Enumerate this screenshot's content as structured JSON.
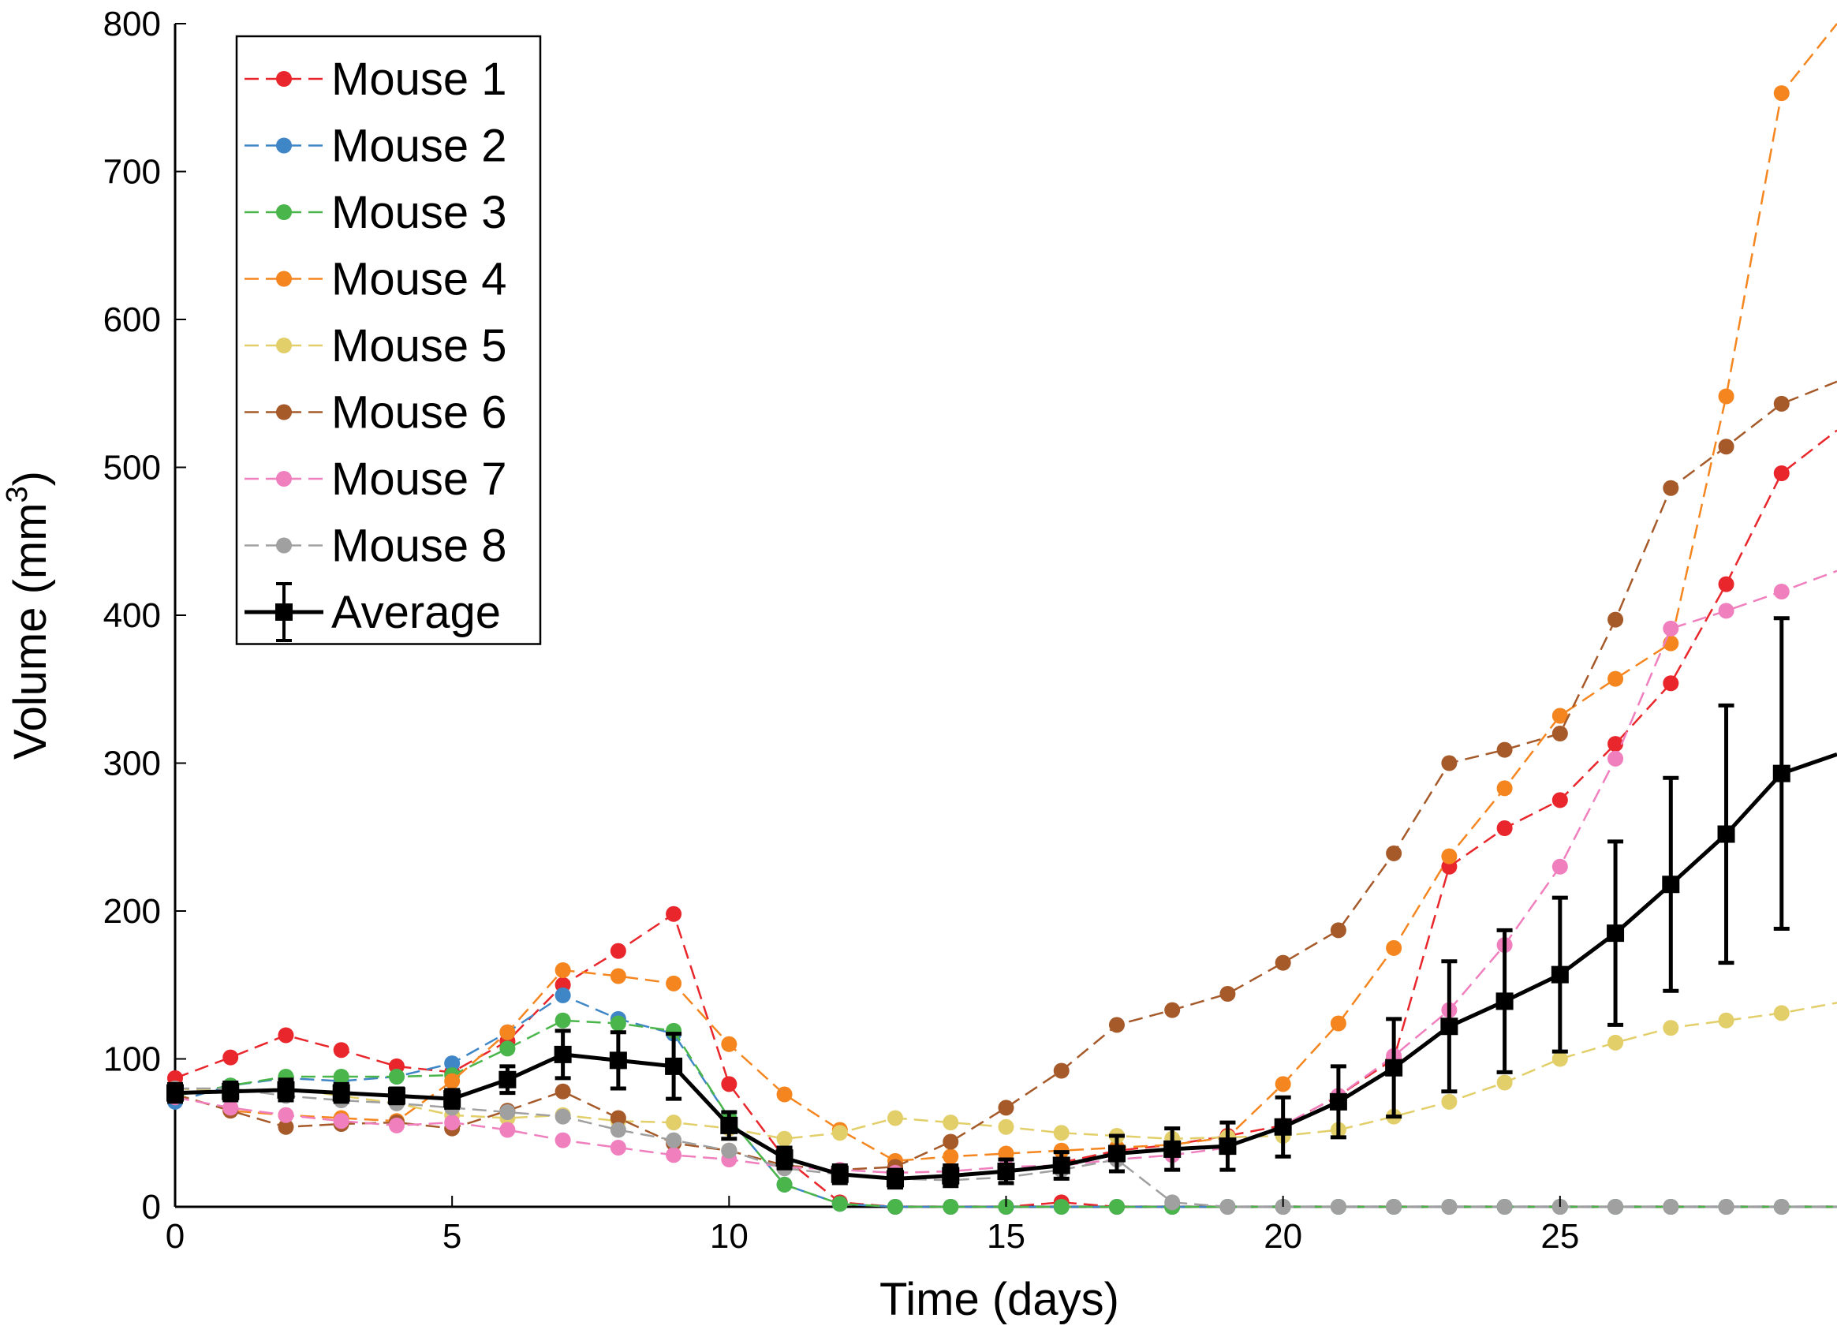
{
  "chart_data": {
    "type": "line",
    "title": "",
    "xlabel": "Time (days)",
    "ylabel": "Volume (mm",
    "ylabel_superscript": "3",
    "ylabel_suffix": ")",
    "xlim": [
      0,
      30
    ],
    "ylim": [
      0,
      800
    ],
    "xticks": [
      0,
      5,
      10,
      15,
      20,
      25
    ],
    "yticks": [
      0,
      100,
      200,
      300,
      400,
      500,
      600,
      700,
      800
    ],
    "legend_position": "top-left",
    "series": [
      {
        "name": "Mouse 1",
        "color": "#e8262b",
        "style": "dashed-marker",
        "x": [
          0,
          1,
          2,
          3,
          4,
          5,
          6,
          7,
          8,
          9,
          10,
          11,
          12,
          13,
          14,
          15,
          16,
          17,
          18,
          19,
          20,
          21,
          22,
          23,
          24,
          25,
          26,
          27,
          28,
          29,
          30
        ],
        "values": [
          87,
          101,
          116,
          106,
          95,
          91,
          112,
          150,
          173,
          198,
          83,
          33,
          3,
          0,
          0,
          0,
          3,
          0,
          0,
          0,
          0,
          0,
          0,
          0,
          0,
          0,
          0,
          0,
          0,
          0,
          0
        ],
        "series_continuation": {
          "x": [
            16,
            17,
            18,
            19,
            20,
            21,
            22,
            23,
            24,
            25,
            26,
            27,
            28,
            29,
            30
          ],
          "values": [
            30,
            38,
            42,
            48,
            55,
            75,
            100,
            230,
            256,
            275,
            313,
            354,
            421,
            496,
            525
          ]
        }
      },
      {
        "name": "Mouse 2",
        "color": "#3f86c6",
        "style": "dashed-marker",
        "x": [
          0,
          1,
          2,
          3,
          4,
          5,
          6,
          7,
          8,
          9,
          10,
          11,
          12,
          13,
          14,
          15,
          16,
          17,
          18,
          19,
          20,
          21,
          22,
          23,
          24,
          25,
          26,
          27,
          28,
          29,
          30
        ],
        "values": [
          71,
          82,
          87,
          85,
          88,
          97,
          118,
          143,
          127,
          117,
          60,
          15,
          2,
          0,
          0,
          0,
          0,
          0,
          0,
          0,
          0,
          0,
          0,
          0,
          0,
          0,
          0,
          0,
          0,
          0,
          0
        ]
      },
      {
        "name": "Mouse 3",
        "color": "#4ab54a",
        "style": "dashed-marker",
        "x": [
          0,
          1,
          2,
          3,
          4,
          5,
          6,
          7,
          8,
          9,
          10,
          11,
          12,
          13,
          14,
          15,
          16,
          17,
          18,
          19,
          20,
          21,
          22,
          23,
          24,
          25,
          26,
          27,
          28,
          29,
          30
        ],
        "values": [
          75,
          82,
          88,
          88,
          88,
          89,
          107,
          126,
          124,
          119,
          60,
          15,
          2,
          0,
          0,
          0,
          0,
          0,
          0,
          0,
          0,
          0,
          0,
          0,
          0,
          0,
          0,
          0,
          0,
          0,
          0
        ]
      },
      {
        "name": "Mouse 4",
        "color": "#f5861f",
        "style": "dashed-marker",
        "x": [
          0,
          1,
          2,
          3,
          4,
          5,
          6,
          7,
          8,
          9,
          10,
          11,
          12,
          13,
          14,
          15,
          16,
          17,
          18,
          19,
          20,
          21,
          22,
          23,
          24,
          25,
          26,
          27,
          28,
          29,
          30
        ],
        "values": [
          76,
          65,
          62,
          60,
          58,
          85,
          118,
          160,
          156,
          151,
          110,
          76,
          52,
          31,
          34,
          36,
          38,
          40,
          42,
          47,
          83,
          124,
          175,
          237,
          283,
          332,
          357,
          381,
          548,
          753,
          800
        ]
      },
      {
        "name": "Mouse 5",
        "color": "#e2cf6a",
        "style": "dashed-marker",
        "x": [
          0,
          1,
          2,
          3,
          4,
          5,
          6,
          7,
          8,
          9,
          10,
          11,
          12,
          13,
          14,
          15,
          16,
          17,
          18,
          19,
          20,
          21,
          22,
          23,
          24,
          25,
          26,
          27,
          28,
          29,
          30
        ],
        "values": [
          80,
          78,
          80,
          75,
          70,
          62,
          60,
          62,
          58,
          57,
          53,
          46,
          50,
          60,
          57,
          54,
          50,
          48,
          46,
          47,
          48,
          52,
          61,
          71,
          84,
          100,
          111,
          121,
          126,
          131,
          138
        ]
      },
      {
        "name": "Mouse 6",
        "color": "#a65a2a",
        "style": "dashed-marker",
        "x": [
          0,
          1,
          2,
          3,
          4,
          5,
          6,
          7,
          8,
          9,
          10,
          11,
          12,
          13,
          14,
          15,
          16,
          17,
          18,
          19,
          20,
          21,
          22,
          23,
          24,
          25,
          26,
          27,
          28,
          29,
          30
        ],
        "values": [
          76,
          65,
          54,
          56,
          57,
          53,
          65,
          78,
          60,
          43,
          38,
          28,
          25,
          27,
          44,
          67,
          92,
          123,
          133,
          144,
          165,
          187,
          239,
          300,
          309,
          320,
          397,
          486,
          514,
          543,
          558
        ]
      },
      {
        "name": "Mouse 7",
        "color": "#f07fbe",
        "style": "dashed-marker",
        "x": [
          0,
          1,
          2,
          3,
          4,
          5,
          6,
          7,
          8,
          9,
          10,
          11,
          12,
          13,
          14,
          15,
          16,
          17,
          18,
          19,
          20,
          21,
          22,
          23,
          24,
          25,
          26,
          27,
          28,
          29,
          30
        ],
        "values": [
          74,
          67,
          62,
          58,
          55,
          57,
          52,
          45,
          40,
          35,
          32,
          27,
          25,
          23,
          24,
          27,
          28,
          32,
          35,
          40,
          55,
          75,
          102,
          133,
          177,
          230,
          303,
          391,
          403,
          416,
          430
        ]
      },
      {
        "name": "Mouse 8",
        "color": "#a0a0a0",
        "style": "dashed-marker",
        "x": [
          0,
          1,
          2,
          3,
          4,
          5,
          6,
          7,
          8,
          9,
          10,
          11,
          12,
          13,
          14,
          15,
          16,
          17,
          18,
          19,
          20,
          21,
          22,
          23,
          24,
          25,
          26,
          27,
          28,
          29,
          30
        ],
        "values": [
          80,
          80,
          75,
          72,
          70,
          67,
          64,
          61,
          52,
          45,
          38,
          26,
          22,
          19,
          18,
          20,
          25,
          32,
          3,
          0,
          0,
          0,
          0,
          0,
          0,
          0,
          0,
          0,
          0,
          0,
          0
        ]
      },
      {
        "name": "Average",
        "color": "#000000",
        "style": "solid-errorbar",
        "x": [
          0,
          1,
          2,
          3,
          4,
          5,
          6,
          7,
          8,
          9,
          10,
          11,
          12,
          13,
          14,
          15,
          16,
          17,
          18,
          19,
          20,
          21,
          22,
          23,
          24,
          25,
          26,
          27,
          28,
          29,
          30
        ],
        "values": [
          77,
          78,
          79,
          77,
          75,
          73,
          86,
          103,
          99,
          95,
          55,
          33,
          22,
          19,
          21,
          24,
          28,
          36,
          39,
          41,
          54,
          71,
          94,
          122,
          139,
          157,
          185,
          218,
          252,
          293,
          306
        ],
        "errors": [
          6,
          6,
          7,
          6,
          5,
          6,
          9,
          16,
          19,
          22,
          9,
          7,
          6,
          6,
          7,
          8,
          9,
          12,
          14,
          16,
          20,
          24,
          33,
          44,
          48,
          52,
          62,
          72,
          87,
          105,
          0
        ]
      }
    ]
  }
}
